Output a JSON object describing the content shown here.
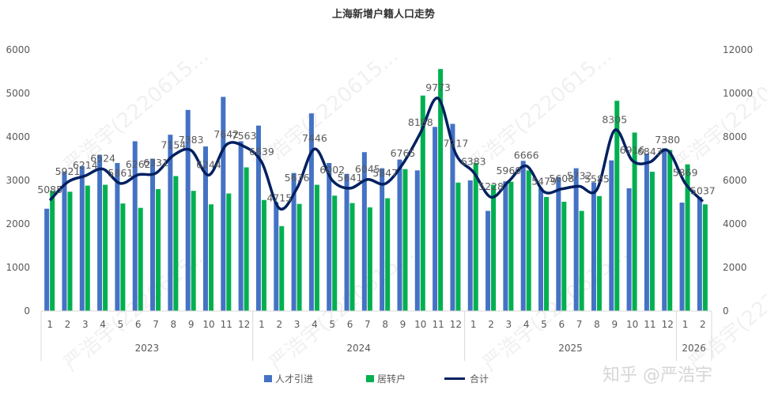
{
  "chart_data": {
    "type": "bar",
    "title": "上海新增户籍人口走势",
    "categories": [
      "1",
      "2",
      "3",
      "4",
      "5",
      "6",
      "7",
      "8",
      "9",
      "10",
      "11",
      "12",
      "1",
      "2",
      "3",
      "4",
      "5",
      "6",
      "7",
      "8",
      "9",
      "10",
      "11",
      "12",
      "1",
      "2",
      "3",
      "4",
      "5",
      "6",
      "7",
      "8",
      "9",
      "10",
      "11",
      "12",
      "1",
      "2"
    ],
    "groups": [
      {
        "label": "2023",
        "count": 12
      },
      {
        "label": "2024",
        "count": 12
      },
      {
        "label": "2025",
        "count": 12
      },
      {
        "label": "2026",
        "count": 2
      }
    ],
    "yleft": {
      "ticks": [
        "0",
        "1000",
        "2000",
        "3000",
        "4000",
        "5000",
        "6000"
      ],
      "lim": [
        0,
        6000
      ]
    },
    "yright": {
      "ticks": [
        "0",
        "2000",
        "4000",
        "6000",
        "8000",
        "10000",
        "12000"
      ],
      "lim": [
        0,
        12000
      ]
    },
    "series": [
      {
        "name": "人才引进",
        "type": "bar",
        "axis": "left",
        "color": "#4472C4",
        "values": [
          2350,
          3200,
          3330,
          3580,
          3400,
          3900,
          3500,
          4050,
          4620,
          3780,
          4920,
          3900,
          4260,
          2500,
          3170,
          4540,
          3400,
          3150,
          3650,
          3280,
          3480,
          3230,
          4230,
          4300,
          3000,
          2300,
          2980,
          3450,
          2820,
          3080,
          3280,
          2950,
          3460,
          2820,
          3620,
          3740,
          2490,
          2620
        ]
      },
      {
        "name": "居转户",
        "type": "bar",
        "axis": "left",
        "color": "#00B050",
        "values": [
          2760,
          2740,
          2880,
          2900,
          2470,
          2370,
          2800,
          3100,
          2760,
          2450,
          2700,
          3300,
          2550,
          1950,
          2460,
          2900,
          2650,
          2480,
          2380,
          2590,
          3260,
          4950,
          5560,
          2950,
          3400,
          2900,
          2970,
          3230,
          2620,
          2510,
          2300,
          2640,
          4830,
          4100,
          3200,
          3700,
          3370,
          2450
        ]
      },
      {
        "name": "合计",
        "type": "line",
        "axis": "right",
        "color": "#002060",
        "values": [
          5085,
          5921,
          6214,
          6524,
          5861,
          6262,
          6331,
          7154,
          7383,
          6244,
          7642,
          7563,
          6839,
          4715,
          5636,
          7446,
          6002,
          5641,
          6045,
          5847,
          6765,
          8188,
          9773,
          7217,
          6383,
          5228,
          5960,
          6666,
          5479,
          5608,
          5732,
          5585,
          8305,
          6916,
          6843,
          7380,
          5869,
          5037
        ],
        "labels": [
          "5085",
          "5921",
          "6214",
          "6524",
          "5861",
          "6262",
          "6331",
          "7154",
          "7383",
          "6244",
          "7642",
          "7563",
          "6839",
          "4715",
          "5636",
          "7446",
          "6002",
          "5641",
          "6045",
          "5847",
          "6765",
          "8188",
          "9773",
          "7217",
          "6383",
          "5228",
          "5960",
          "6666",
          "5479",
          "5608",
          "5732",
          "5585",
          "8305",
          "6916",
          "6843",
          "7380",
          "5869",
          "5037"
        ]
      }
    ],
    "legend_position": "bottom",
    "grid": false
  },
  "watermark": {
    "text": "严浩宇(2220615...",
    "brand": "知乎 @严浩宇"
  }
}
